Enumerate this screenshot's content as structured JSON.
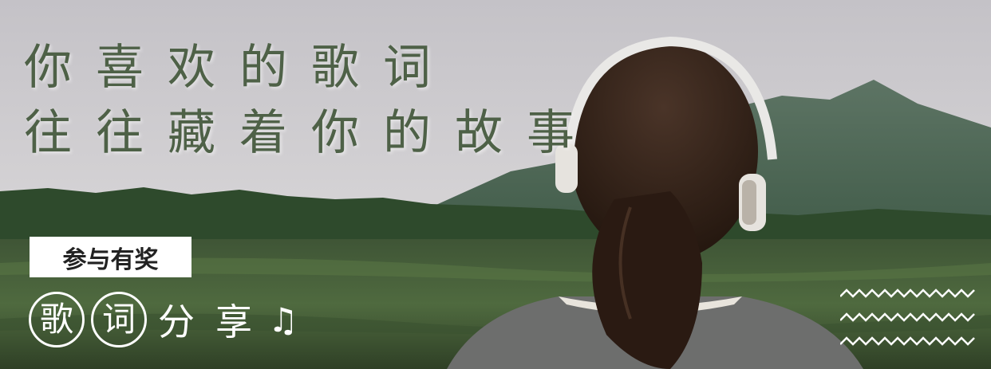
{
  "headline": {
    "line1": "你喜欢的歌词",
    "line2": "往往藏着你的故事"
  },
  "badge": {
    "label": "参与有奖"
  },
  "share": {
    "circled": [
      "歌",
      "词"
    ],
    "plain": [
      "分",
      "享"
    ],
    "note": "♫"
  },
  "colors": {
    "headline": "#4e6147",
    "badge_bg": "#ffffff",
    "accent_text": "#ffffff"
  },
  "icons": [
    "music-note-icon",
    "zigzag-decoration"
  ]
}
